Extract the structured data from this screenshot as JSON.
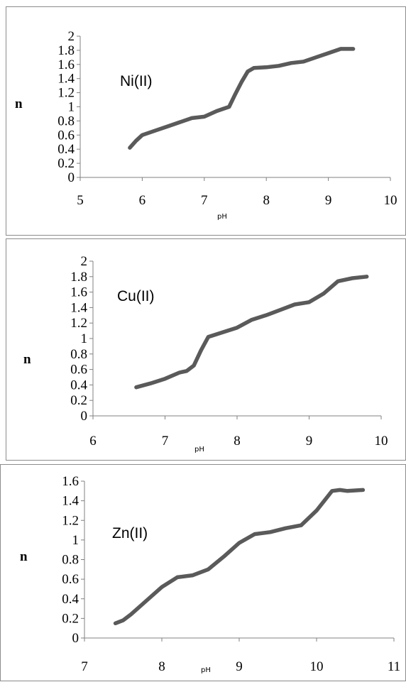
{
  "colors": {
    "line": "#5a5a5a",
    "axis": "#808080",
    "border": "#8c8c8c"
  },
  "chart_data": [
    {
      "type": "line",
      "title": "",
      "annotation": "Ni(II)",
      "xlabel": "pH",
      "ylabel": "n",
      "xlim": [
        5,
        10
      ],
      "ylim": [
        0,
        2
      ],
      "xticks": [
        "5",
        "6",
        "7",
        "8",
        "9",
        "10"
      ],
      "yticks": [
        "0",
        "0.2",
        "0.4",
        "0.6",
        "0.8",
        "1",
        "1.2",
        "1.4",
        "1.6",
        "1.8",
        "2"
      ],
      "series": [
        {
          "x": [
            5.8,
            5.9,
            6.0,
            6.2,
            6.4,
            6.6,
            6.8,
            7.0,
            7.2,
            7.3,
            7.4,
            7.5,
            7.6,
            7.7,
            7.8,
            8.0,
            8.2,
            8.4,
            8.6,
            8.8,
            9.0,
            9.2,
            9.4
          ],
          "y": [
            0.42,
            0.52,
            0.6,
            0.66,
            0.72,
            0.78,
            0.84,
            0.86,
            0.94,
            0.97,
            1.0,
            1.18,
            1.35,
            1.5,
            1.55,
            1.56,
            1.58,
            1.62,
            1.64,
            1.7,
            1.76,
            1.82,
            1.82
          ]
        }
      ]
    },
    {
      "type": "line",
      "title": "",
      "annotation": "Cu(II)",
      "xlabel": "pH",
      "ylabel": "n",
      "xlim": [
        6,
        10
      ],
      "ylim": [
        0,
        2
      ],
      "xticks": [
        "6",
        "7",
        "8",
        "9",
        "10"
      ],
      "yticks": [
        "0",
        "0.2",
        "0.4",
        "0.6",
        "0.8",
        "1",
        "1.2",
        "1.4",
        "1.6",
        "1.8",
        "2"
      ],
      "series": [
        {
          "x": [
            6.6,
            6.8,
            7.0,
            7.2,
            7.3,
            7.4,
            7.5,
            7.6,
            7.8,
            8.0,
            8.2,
            8.4,
            8.6,
            8.8,
            9.0,
            9.2,
            9.4,
            9.6,
            9.8
          ],
          "y": [
            0.37,
            0.42,
            0.48,
            0.56,
            0.58,
            0.65,
            0.85,
            1.02,
            1.08,
            1.14,
            1.24,
            1.3,
            1.37,
            1.44,
            1.47,
            1.58,
            1.74,
            1.78,
            1.8
          ]
        }
      ]
    },
    {
      "type": "line",
      "title": "",
      "annotation": "Zn(II)",
      "xlabel": "pH",
      "ylabel": "n",
      "xlim": [
        7,
        11
      ],
      "ylim": [
        0,
        1.6
      ],
      "xticks": [
        "7",
        "8",
        "9",
        "10",
        "11"
      ],
      "yticks": [
        "0",
        "0.2",
        "0.4",
        "0.6",
        "0.8",
        "1",
        "1.2",
        "1.4",
        "1.6"
      ],
      "series": [
        {
          "x": [
            7.4,
            7.5,
            7.6,
            7.8,
            8.0,
            8.2,
            8.4,
            8.6,
            8.8,
            9.0,
            9.2,
            9.4,
            9.6,
            9.8,
            10.0,
            10.2,
            10.3,
            10.4,
            10.6
          ],
          "y": [
            0.15,
            0.18,
            0.24,
            0.38,
            0.52,
            0.62,
            0.64,
            0.7,
            0.83,
            0.97,
            1.06,
            1.08,
            1.12,
            1.15,
            1.3,
            1.5,
            1.51,
            1.5,
            1.51
          ]
        }
      ]
    }
  ]
}
